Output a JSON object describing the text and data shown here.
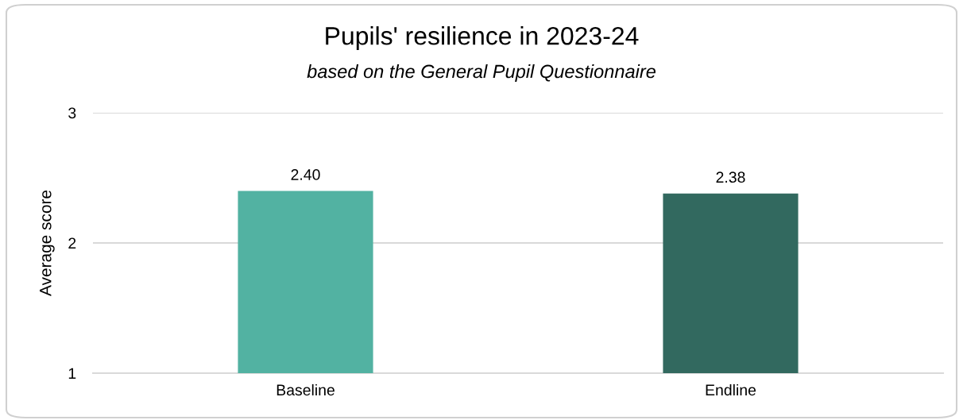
{
  "chart_data": {
    "type": "bar",
    "title": "Pupils' resilience in 2023-24",
    "subtitle": "based on the General Pupil Questionnaire",
    "ylabel": "Average score",
    "categories": [
      "Baseline",
      "Endline"
    ],
    "values": [
      2.4,
      2.38
    ],
    "value_labels": [
      "2.40",
      "2.38"
    ],
    "colors": [
      "#52b2a2",
      "#32695f"
    ],
    "ylim": [
      1,
      3
    ],
    "yticks": [
      1,
      2,
      3
    ],
    "grid": "y",
    "legend": false
  }
}
